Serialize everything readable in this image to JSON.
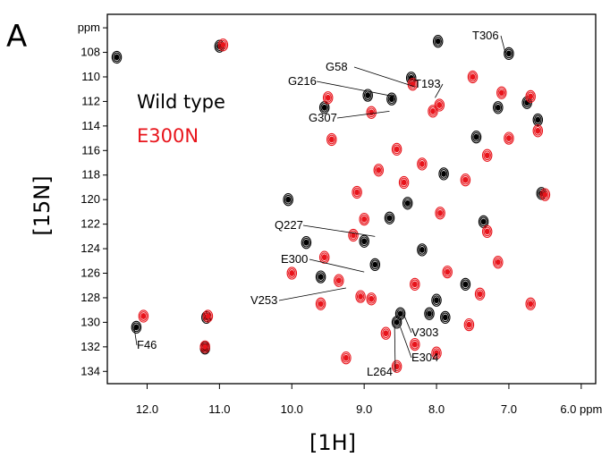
{
  "panel_label": "A",
  "colors": {
    "wild_type": "#000000",
    "e300n": "#e8141b"
  },
  "chart_data": {
    "type": "scatter",
    "title": "",
    "xlabel": "[1H]",
    "ylabel": "[15N]",
    "x_unit": "ppm",
    "y_unit": "ppm",
    "xlim": [
      12.55,
      5.8
    ],
    "ylim": [
      104.9,
      135.0
    ],
    "x_reversed": true,
    "y_reversed": true,
    "x_ticks": [
      "12.0",
      "11.0",
      "10.0",
      "9.0",
      "8.0",
      "7.0",
      "6.0 ppm"
    ],
    "x_tick_values": [
      12.0,
      11.0,
      10.0,
      9.0,
      8.0,
      7.0,
      6.0
    ],
    "y_ticks": [
      "ppm",
      "108",
      "110",
      "112",
      "114",
      "116",
      "118",
      "120",
      "122",
      "124",
      "126",
      "128",
      "130",
      "132",
      "134"
    ],
    "y_tick_values": [
      106,
      108,
      110,
      112,
      114,
      116,
      118,
      120,
      122,
      124,
      126,
      128,
      130,
      132,
      134
    ],
    "grid": false,
    "legend_position": "top-left",
    "series": [
      {
        "name": "Wild type",
        "color": "#000000",
        "points": [
          [
            12.42,
            108.4
          ],
          [
            11.0,
            107.5
          ],
          [
            11.18,
            129.6
          ],
          [
            11.2,
            132.1
          ],
          [
            12.15,
            130.4
          ],
          [
            10.05,
            120.0
          ],
          [
            9.55,
            112.5
          ],
          [
            8.95,
            111.5
          ],
          [
            8.62,
            111.8
          ],
          [
            8.35,
            110.1
          ],
          [
            7.98,
            107.1
          ],
          [
            7.0,
            108.1
          ],
          [
            9.0,
            123.4
          ],
          [
            8.0,
            128.2
          ],
          [
            8.1,
            129.3
          ],
          [
            8.5,
            129.3
          ],
          [
            8.55,
            130.0
          ],
          [
            7.88,
            129.6
          ],
          [
            9.6,
            126.3
          ],
          [
            9.8,
            123.5
          ],
          [
            6.55,
            119.5
          ],
          [
            7.35,
            121.8
          ],
          [
            8.65,
            121.5
          ],
          [
            8.85,
            125.3
          ],
          [
            7.9,
            117.9
          ],
          [
            7.45,
            114.9
          ],
          [
            6.75,
            112.1
          ],
          [
            7.15,
            112.5
          ],
          [
            6.6,
            113.5
          ],
          [
            8.4,
            120.3
          ],
          [
            8.2,
            124.1
          ],
          [
            7.6,
            126.9
          ]
        ]
      },
      {
        "name": "E300N",
        "color": "#e8141b",
        "points": [
          [
            10.95,
            107.4
          ],
          [
            11.2,
            132.0
          ],
          [
            11.16,
            129.5
          ],
          [
            12.05,
            129.5
          ],
          [
            9.5,
            111.7
          ],
          [
            8.9,
            112.9
          ],
          [
            8.33,
            110.6
          ],
          [
            7.96,
            112.3
          ],
          [
            7.5,
            110.0
          ],
          [
            7.1,
            111.3
          ],
          [
            6.7,
            111.6
          ],
          [
            6.6,
            114.4
          ],
          [
            9.45,
            115.1
          ],
          [
            9.1,
            119.4
          ],
          [
            9.0,
            121.6
          ],
          [
            8.8,
            117.6
          ],
          [
            8.45,
            118.6
          ],
          [
            8.2,
            117.1
          ],
          [
            7.95,
            121.1
          ],
          [
            7.6,
            118.4
          ],
          [
            7.3,
            116.4
          ],
          [
            7.0,
            115.0
          ],
          [
            6.5,
            119.6
          ],
          [
            7.3,
            122.6
          ],
          [
            9.55,
            124.7
          ],
          [
            9.35,
            126.6
          ],
          [
            9.6,
            128.5
          ],
          [
            8.9,
            128.1
          ],
          [
            8.3,
            126.9
          ],
          [
            7.85,
            125.9
          ],
          [
            7.4,
            127.7
          ],
          [
            7.15,
            125.1
          ],
          [
            8.7,
            130.9
          ],
          [
            8.3,
            131.8
          ],
          [
            8.0,
            132.5
          ],
          [
            8.55,
            133.6
          ],
          [
            9.25,
            132.9
          ],
          [
            9.05,
            127.9
          ],
          [
            6.7,
            128.5
          ],
          [
            7.55,
            130.2
          ],
          [
            8.05,
            112.8
          ],
          [
            8.55,
            115.9
          ],
          [
            9.15,
            122.9
          ],
          [
            10.0,
            126.0
          ]
        ]
      }
    ],
    "annotations": [
      {
        "label": "T306",
        "peak": [
          7.05,
          108.0
        ]
      },
      {
        "label": "G58",
        "peak": [
          8.3,
          110.8
        ]
      },
      {
        "label": "G216",
        "peak": [
          8.58,
          111.6
        ]
      },
      {
        "label": "T193",
        "peak": [
          8.02,
          111.7
        ]
      },
      {
        "label": "G307",
        "peak": [
          8.65,
          112.8
        ]
      },
      {
        "label": "Q227",
        "peak": [
          8.85,
          123.0
        ]
      },
      {
        "label": "E300",
        "peak": [
          9.0,
          125.9
        ]
      },
      {
        "label": "V253",
        "peak": [
          9.25,
          127.2
        ]
      },
      {
        "label": "V303",
        "peak": [
          8.45,
          129.4
        ]
      },
      {
        "label": "E304",
        "peak": [
          8.5,
          130.4
        ]
      },
      {
        "label": "L264",
        "peak": [
          8.58,
          130.3
        ]
      },
      {
        "label": "F46",
        "peak": [
          12.18,
          130.4
        ]
      }
    ]
  }
}
